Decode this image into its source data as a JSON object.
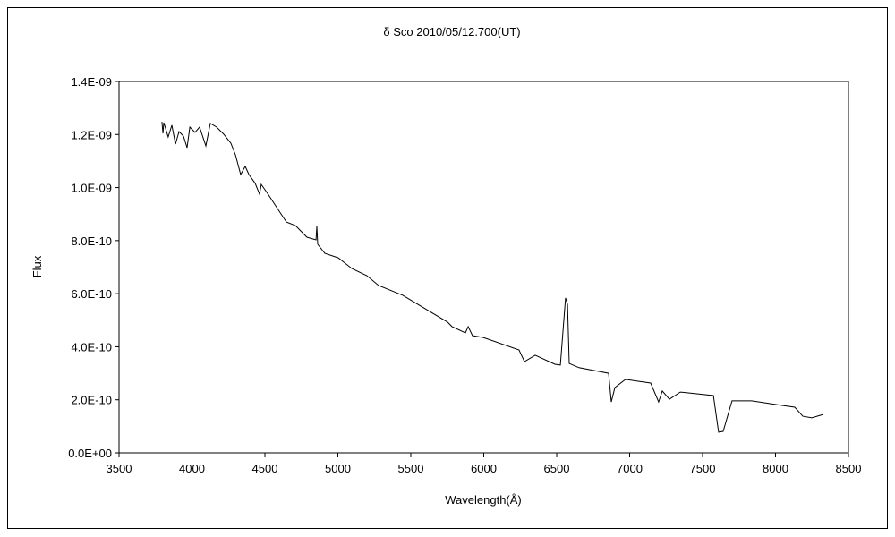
{
  "chart_data": {
    "type": "line",
    "title": "δ  Sco   2010/05/12.700(UT)",
    "xlabel": "Wavelength(Å)",
    "ylabel": "Flux",
    "xlim": [
      3500,
      8500
    ],
    "ylim": [
      0,
      1.4e-09
    ],
    "xticks": [
      3500,
      4000,
      4500,
      5000,
      5500,
      6000,
      6500,
      7000,
      7500,
      8000,
      8500
    ],
    "xtick_labels": [
      "3500",
      "4000",
      "4500",
      "5000",
      "5500",
      "6000",
      "6500",
      "7000",
      "7500",
      "8000",
      "8500"
    ],
    "yticks": [
      0,
      2e-10,
      4e-10,
      6e-10,
      8e-10,
      1e-09,
      1.2e-09,
      1.4e-09
    ],
    "ytick_labels": [
      "0.0E+00",
      "2.0E-10",
      "4.0E-10",
      "6.0E-10",
      "8.0E-10",
      "1.0E-09",
      "1.2E-09",
      "1.4E-09"
    ],
    "grid": false,
    "legend": "none",
    "flux_unit_scale": 1e-10,
    "series": [
      {
        "name": "Flux",
        "color": "#000000",
        "x": [
          3794,
          3801,
          3807,
          3837,
          3862,
          3887,
          3911,
          3942,
          3966,
          3985,
          4021,
          4052,
          4095,
          4126,
          4169,
          4218,
          4267,
          4298,
          4334,
          4365,
          4390,
          4433,
          4463,
          4475,
          4525,
          4586,
          4647,
          4709,
          4788,
          4850,
          4856,
          4862,
          4911,
          5003,
          5095,
          5199,
          5279,
          5445,
          5752,
          5782,
          5874,
          5893,
          5923,
          5997,
          6242,
          6279,
          6353,
          6488,
          6525,
          6561,
          6574,
          6586,
          6653,
          6856,
          6874,
          6899,
          6972,
          7058,
          7144,
          7199,
          7224,
          7273,
          7347,
          7574,
          7610,
          7641,
          7702,
          7837,
          8040,
          8132,
          8187,
          8249,
          8328
        ],
        "y": [
          12.48,
          12.04,
          12.45,
          11.91,
          12.35,
          11.64,
          12.11,
          11.94,
          11.5,
          12.28,
          12.08,
          12.28,
          11.57,
          12.42,
          12.28,
          12.01,
          11.67,
          11.23,
          10.49,
          10.8,
          10.49,
          10.16,
          9.75,
          10.12,
          9.72,
          9.21,
          8.7,
          8.57,
          8.13,
          8.03,
          8.54,
          7.86,
          7.52,
          7.35,
          6.95,
          6.68,
          6.31,
          5.94,
          4.93,
          4.76,
          4.52,
          4.76,
          4.42,
          4.35,
          3.88,
          3.44,
          3.68,
          3.34,
          3.31,
          5.84,
          5.6,
          3.37,
          3.21,
          3.0,
          1.92,
          2.46,
          2.77,
          2.7,
          2.63,
          1.92,
          2.33,
          2.02,
          2.29,
          2.16,
          0.78,
          0.81,
          1.96,
          1.96,
          1.79,
          1.72,
          1.38,
          1.32,
          1.45
        ]
      }
    ]
  }
}
